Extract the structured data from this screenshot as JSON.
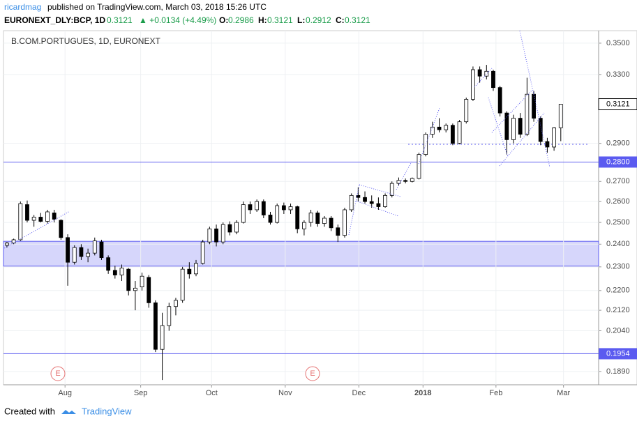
{
  "header": {
    "author": "ricardmag",
    "published": "published on TradingView.com, March 03, 2018 15:26 UTC",
    "symbol": "EURONEXT_DLY:BCP, 1D",
    "last": "0.3121",
    "change": "▲ +0.0134 (+4.49%)",
    "o_label": "O:",
    "o": "0.2986",
    "h_label": "H:",
    "h": "0.3121",
    "l_label": "L:",
    "l": "0.2912",
    "c_label": "C:",
    "c": "0.3121"
  },
  "chart_data": {
    "type": "candlestick",
    "legend": "B.COM.PORTUGUES, 1D, EURONEXT",
    "log_scale": true,
    "grid": true,
    "up_color": "#ffffff",
    "down_color": "#000000",
    "xlim": [
      -0.2,
      87.6
    ],
    "xticks": [
      {
        "value": 8.6,
        "label": "Aug"
      },
      {
        "value": 19.8,
        "label": "Sep"
      },
      {
        "value": 30.3,
        "label": "Oct"
      },
      {
        "value": 41.2,
        "label": "Nov"
      },
      {
        "value": 52.1,
        "label": "Dec"
      },
      {
        "value": 61.6,
        "label": "2018"
      },
      {
        "value": 72.4,
        "label": "Feb"
      },
      {
        "value": 82.4,
        "label": "Mar"
      }
    ],
    "ylim": [
      0.1853,
      0.3583
    ],
    "yticks": [
      {
        "value": 0.35,
        "label": "0.3500"
      },
      {
        "value": 0.33,
        "label": "0.3300"
      },
      {
        "value": 0.29,
        "label": "0.2900"
      },
      {
        "value": 0.27,
        "label": "0.2700"
      },
      {
        "value": 0.26,
        "label": "0.2600"
      },
      {
        "value": 0.25,
        "label": "0.2500"
      },
      {
        "value": 0.24,
        "label": "0.2400"
      },
      {
        "value": 0.23,
        "label": "0.2300"
      },
      {
        "value": 0.22,
        "label": "0.2200"
      },
      {
        "value": 0.212,
        "label": "0.2120"
      },
      {
        "value": 0.204,
        "label": "0.2040"
      },
      {
        "value": 0.189,
        "label": "0.1890"
      }
    ],
    "levels": [
      {
        "value": 0.28,
        "label": "0.2800"
      },
      {
        "value": 0.1954,
        "label": "0.1954"
      }
    ],
    "zone": [
      0.2303,
      0.2413
    ],
    "zone_color": "#d6d6fb",
    "level_color": "#5b5bf0",
    "support": 0.2895,
    "current": {
      "value": 0.3121,
      "label": "0.3121"
    },
    "events": [
      "E",
      "E"
    ],
    "candles": [
      [
        0.2395,
        0.241,
        0.2385,
        0.2405
      ],
      [
        0.2405,
        0.2425,
        0.24,
        0.242
      ],
      [
        0.242,
        0.26,
        0.2415,
        0.259
      ],
      [
        0.2585,
        0.2605,
        0.25,
        0.251
      ],
      [
        0.251,
        0.2535,
        0.248,
        0.2525
      ],
      [
        0.2525,
        0.2545,
        0.25,
        0.2505
      ],
      [
        0.2505,
        0.256,
        0.2495,
        0.255
      ],
      [
        0.2545,
        0.256,
        0.25,
        0.2515
      ],
      [
        0.251,
        0.2515,
        0.242,
        0.243
      ],
      [
        0.243,
        0.2445,
        0.222,
        0.232
      ],
      [
        0.232,
        0.2395,
        0.231,
        0.2385
      ],
      [
        0.2385,
        0.24,
        0.233,
        0.2345
      ],
      [
        0.2345,
        0.238,
        0.232,
        0.236
      ],
      [
        0.236,
        0.243,
        0.235,
        0.2415
      ],
      [
        0.241,
        0.242,
        0.233,
        0.234
      ],
      [
        0.234,
        0.235,
        0.227,
        0.2285
      ],
      [
        0.2285,
        0.2305,
        0.225,
        0.2265
      ],
      [
        0.2265,
        0.231,
        0.224,
        0.2295
      ],
      [
        0.229,
        0.2295,
        0.218,
        0.22
      ],
      [
        0.22,
        0.224,
        0.212,
        0.221
      ],
      [
        0.2215,
        0.2275,
        0.22,
        0.226
      ],
      [
        0.2255,
        0.2265,
        0.213,
        0.215
      ],
      [
        0.215,
        0.216,
        0.196,
        0.197
      ],
      [
        0.197,
        0.211,
        0.186,
        0.206
      ],
      [
        0.206,
        0.215,
        0.204,
        0.2135
      ],
      [
        0.2135,
        0.217,
        0.21,
        0.216
      ],
      [
        0.216,
        0.23,
        0.215,
        0.229
      ],
      [
        0.229,
        0.232,
        0.225,
        0.227
      ],
      [
        0.227,
        0.233,
        0.226,
        0.2315
      ],
      [
        0.2315,
        0.242,
        0.231,
        0.241
      ],
      [
        0.241,
        0.248,
        0.24,
        0.247
      ],
      [
        0.247,
        0.249,
        0.239,
        0.241
      ],
      [
        0.241,
        0.25,
        0.24,
        0.249
      ],
      [
        0.249,
        0.2505,
        0.244,
        0.2455
      ],
      [
        0.2455,
        0.251,
        0.2445,
        0.25
      ],
      [
        0.25,
        0.26,
        0.2495,
        0.2585
      ],
      [
        0.2585,
        0.26,
        0.254,
        0.256
      ],
      [
        0.256,
        0.261,
        0.255,
        0.26
      ],
      [
        0.26,
        0.261,
        0.252,
        0.2535
      ],
      [
        0.2535,
        0.255,
        0.249,
        0.25
      ],
      [
        0.25,
        0.259,
        0.2495,
        0.258
      ],
      [
        0.258,
        0.2595,
        0.254,
        0.256
      ],
      [
        0.256,
        0.259,
        0.254,
        0.2575
      ],
      [
        0.2575,
        0.258,
        0.245,
        0.247
      ],
      [
        0.247,
        0.251,
        0.244,
        0.25
      ],
      [
        0.25,
        0.256,
        0.248,
        0.2545
      ],
      [
        0.2545,
        0.2555,
        0.248,
        0.2495
      ],
      [
        0.2495,
        0.253,
        0.248,
        0.252
      ],
      [
        0.252,
        0.253,
        0.246,
        0.2475
      ],
      [
        0.2475,
        0.249,
        0.241,
        0.244
      ],
      [
        0.244,
        0.257,
        0.243,
        0.256
      ],
      [
        0.256,
        0.264,
        0.255,
        0.263
      ],
      [
        0.263,
        0.267,
        0.26,
        0.262
      ],
      [
        0.262,
        0.265,
        0.259,
        0.26
      ],
      [
        0.26,
        0.263,
        0.257,
        0.259
      ],
      [
        0.259,
        0.262,
        0.256,
        0.2575
      ],
      [
        0.2575,
        0.264,
        0.257,
        0.263
      ],
      [
        0.263,
        0.27,
        0.262,
        0.269
      ],
      [
        0.269,
        0.272,
        0.268,
        0.2705
      ],
      [
        0.2705,
        0.2715,
        0.269,
        0.27
      ],
      [
        0.27,
        0.272,
        0.2695,
        0.2715
      ],
      [
        0.2715,
        0.285,
        0.271,
        0.284
      ],
      [
        0.284,
        0.296,
        0.283,
        0.295
      ],
      [
        0.295,
        0.302,
        0.293,
        0.299
      ],
      [
        0.299,
        0.304,
        0.296,
        0.2975
      ],
      [
        0.2975,
        0.301,
        0.296,
        0.3
      ],
      [
        0.3,
        0.301,
        0.289,
        0.29
      ],
      [
        0.29,
        0.303,
        0.2895,
        0.302
      ],
      [
        0.302,
        0.316,
        0.301,
        0.315
      ],
      [
        0.315,
        0.335,
        0.314,
        0.333
      ],
      [
        0.333,
        0.335,
        0.325,
        0.329
      ],
      [
        0.329,
        0.336,
        0.327,
        0.332
      ],
      [
        0.332,
        0.333,
        0.32,
        0.322
      ],
      [
        0.322,
        0.323,
        0.305,
        0.307
      ],
      [
        0.307,
        0.308,
        0.284,
        0.292
      ],
      [
        0.292,
        0.306,
        0.29,
        0.304
      ],
      [
        0.304,
        0.307,
        0.293,
        0.295
      ],
      [
        0.295,
        0.328,
        0.294,
        0.318
      ],
      [
        0.318,
        0.32,
        0.302,
        0.304
      ],
      [
        0.304,
        0.305,
        0.289,
        0.291
      ],
      [
        0.291,
        0.293,
        0.285,
        0.288
      ],
      [
        0.288,
        0.299,
        0.286,
        0.2986
      ],
      [
        0.2986,
        0.3121,
        0.2912,
        0.3121
      ]
    ]
  },
  "footer": {
    "created": "Created with",
    "brand": "TradingView"
  }
}
